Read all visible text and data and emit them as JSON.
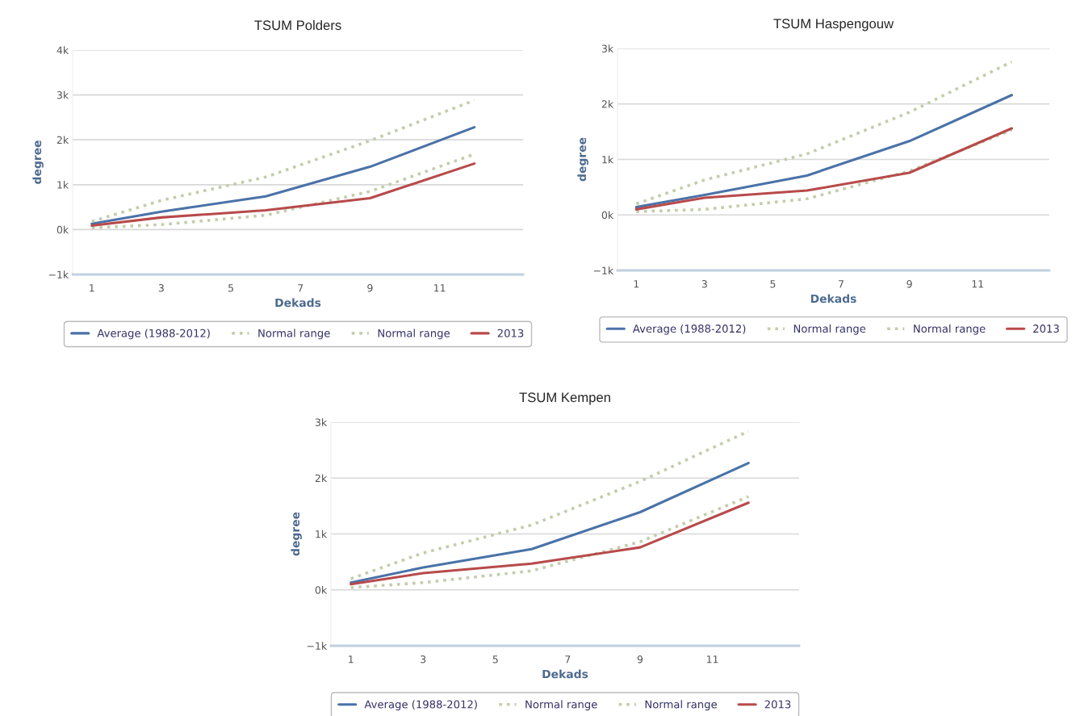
{
  "chart_data": [
    {
      "type": "line",
      "title": "TSUM Polders",
      "xlabel": "Dekads",
      "ylabel": "degree",
      "x": [
        1,
        3,
        6,
        9,
        12
      ],
      "xlim": [
        0.45,
        13.4
      ],
      "xticks": [
        1,
        3,
        5,
        7,
        9,
        11
      ],
      "ylim": [
        -1000,
        4000
      ],
      "yticks": [
        {
          "value": -1000,
          "label": "−1k"
        },
        {
          "value": 0,
          "label": "0k"
        },
        {
          "value": 1000,
          "label": "1k"
        },
        {
          "value": 2000,
          "label": "2k"
        },
        {
          "value": 3000,
          "label": "3k"
        },
        {
          "value": 4000,
          "label": "4k"
        }
      ],
      "grid": "y",
      "legend": "bottom",
      "marker": "none",
      "series": [
        {
          "name": "Average (1988-2012)",
          "color": "#4a72a8",
          "line_style": "solid",
          "values": [
            130,
            400,
            740,
            1400,
            2280
          ]
        },
        {
          "name": "Normal range",
          "color": "#c2ceaa",
          "line_style": "dotted",
          "values": [
            180,
            650,
            1170,
            1980,
            2880
          ]
        },
        {
          "name": "Normal range",
          "color": "#c2ceaa",
          "line_style": "dotted",
          "values": [
            40,
            110,
            320,
            850,
            1680
          ]
        },
        {
          "name": "2013",
          "color": "#b84a4a",
          "line_style": "solid",
          "values": [
            90,
            270,
            430,
            700,
            1470
          ]
        }
      ]
    },
    {
      "type": "line",
      "title": "TSUM Haspengouw",
      "xlabel": "Dekads",
      "ylabel": "degree",
      "x": [
        1,
        3,
        6,
        9,
        12
      ],
      "xlim": [
        0.45,
        13.1
      ],
      "xticks": [
        1,
        3,
        5,
        7,
        9,
        11
      ],
      "ylim": [
        -1000,
        3000
      ],
      "yticks": [
        {
          "value": -1000,
          "label": "−1k"
        },
        {
          "value": 0,
          "label": "0k"
        },
        {
          "value": 1000,
          "label": "1k"
        },
        {
          "value": 2000,
          "label": "2k"
        },
        {
          "value": 3000,
          "label": "3k"
        }
      ],
      "grid": "y",
      "legend": "bottom",
      "marker": "none",
      "series": [
        {
          "name": "Average (1988-2012)",
          "color": "#4a72a8",
          "line_style": "solid",
          "values": [
            140,
            360,
            710,
            1330,
            2160
          ]
        },
        {
          "name": "Normal range",
          "color": "#c2ceaa",
          "line_style": "dotted",
          "values": [
            200,
            630,
            1100,
            1850,
            2760
          ]
        },
        {
          "name": "Normal range",
          "color": "#c2ceaa",
          "line_style": "dotted",
          "values": [
            60,
            100,
            290,
            790,
            1530
          ]
        },
        {
          "name": "2013",
          "color": "#b84a4a",
          "line_style": "solid",
          "values": [
            100,
            310,
            440,
            760,
            1560
          ]
        }
      ]
    },
    {
      "type": "line",
      "title": "TSUM Kempen",
      "xlabel": "Dekads",
      "ylabel": "degree",
      "x": [
        1,
        3,
        6,
        9,
        12
      ],
      "xlim": [
        0.45,
        13.4
      ],
      "xticks": [
        1,
        3,
        5,
        7,
        9,
        11
      ],
      "ylim": [
        -1000,
        3000
      ],
      "yticks": [
        {
          "value": -1000,
          "label": "−1k"
        },
        {
          "value": 0,
          "label": "0k"
        },
        {
          "value": 1000,
          "label": "1k"
        },
        {
          "value": 2000,
          "label": "2k"
        },
        {
          "value": 3000,
          "label": "3k"
        }
      ],
      "grid": "y",
      "legend": "bottom",
      "marker": "none",
      "series": [
        {
          "name": "Average (1988-2012)",
          "color": "#4a72a8",
          "line_style": "solid",
          "values": [
            130,
            400,
            730,
            1390,
            2270
          ]
        },
        {
          "name": "Normal range",
          "color": "#c2ceaa",
          "line_style": "dotted",
          "values": [
            200,
            660,
            1160,
            1940,
            2840
          ]
        },
        {
          "name": "Normal range",
          "color": "#c2ceaa",
          "line_style": "dotted",
          "values": [
            40,
            130,
            340,
            860,
            1670
          ]
        },
        {
          "name": "2013",
          "color": "#b84a4a",
          "line_style": "solid",
          "values": [
            100,
            300,
            470,
            760,
            1560
          ]
        }
      ]
    }
  ]
}
